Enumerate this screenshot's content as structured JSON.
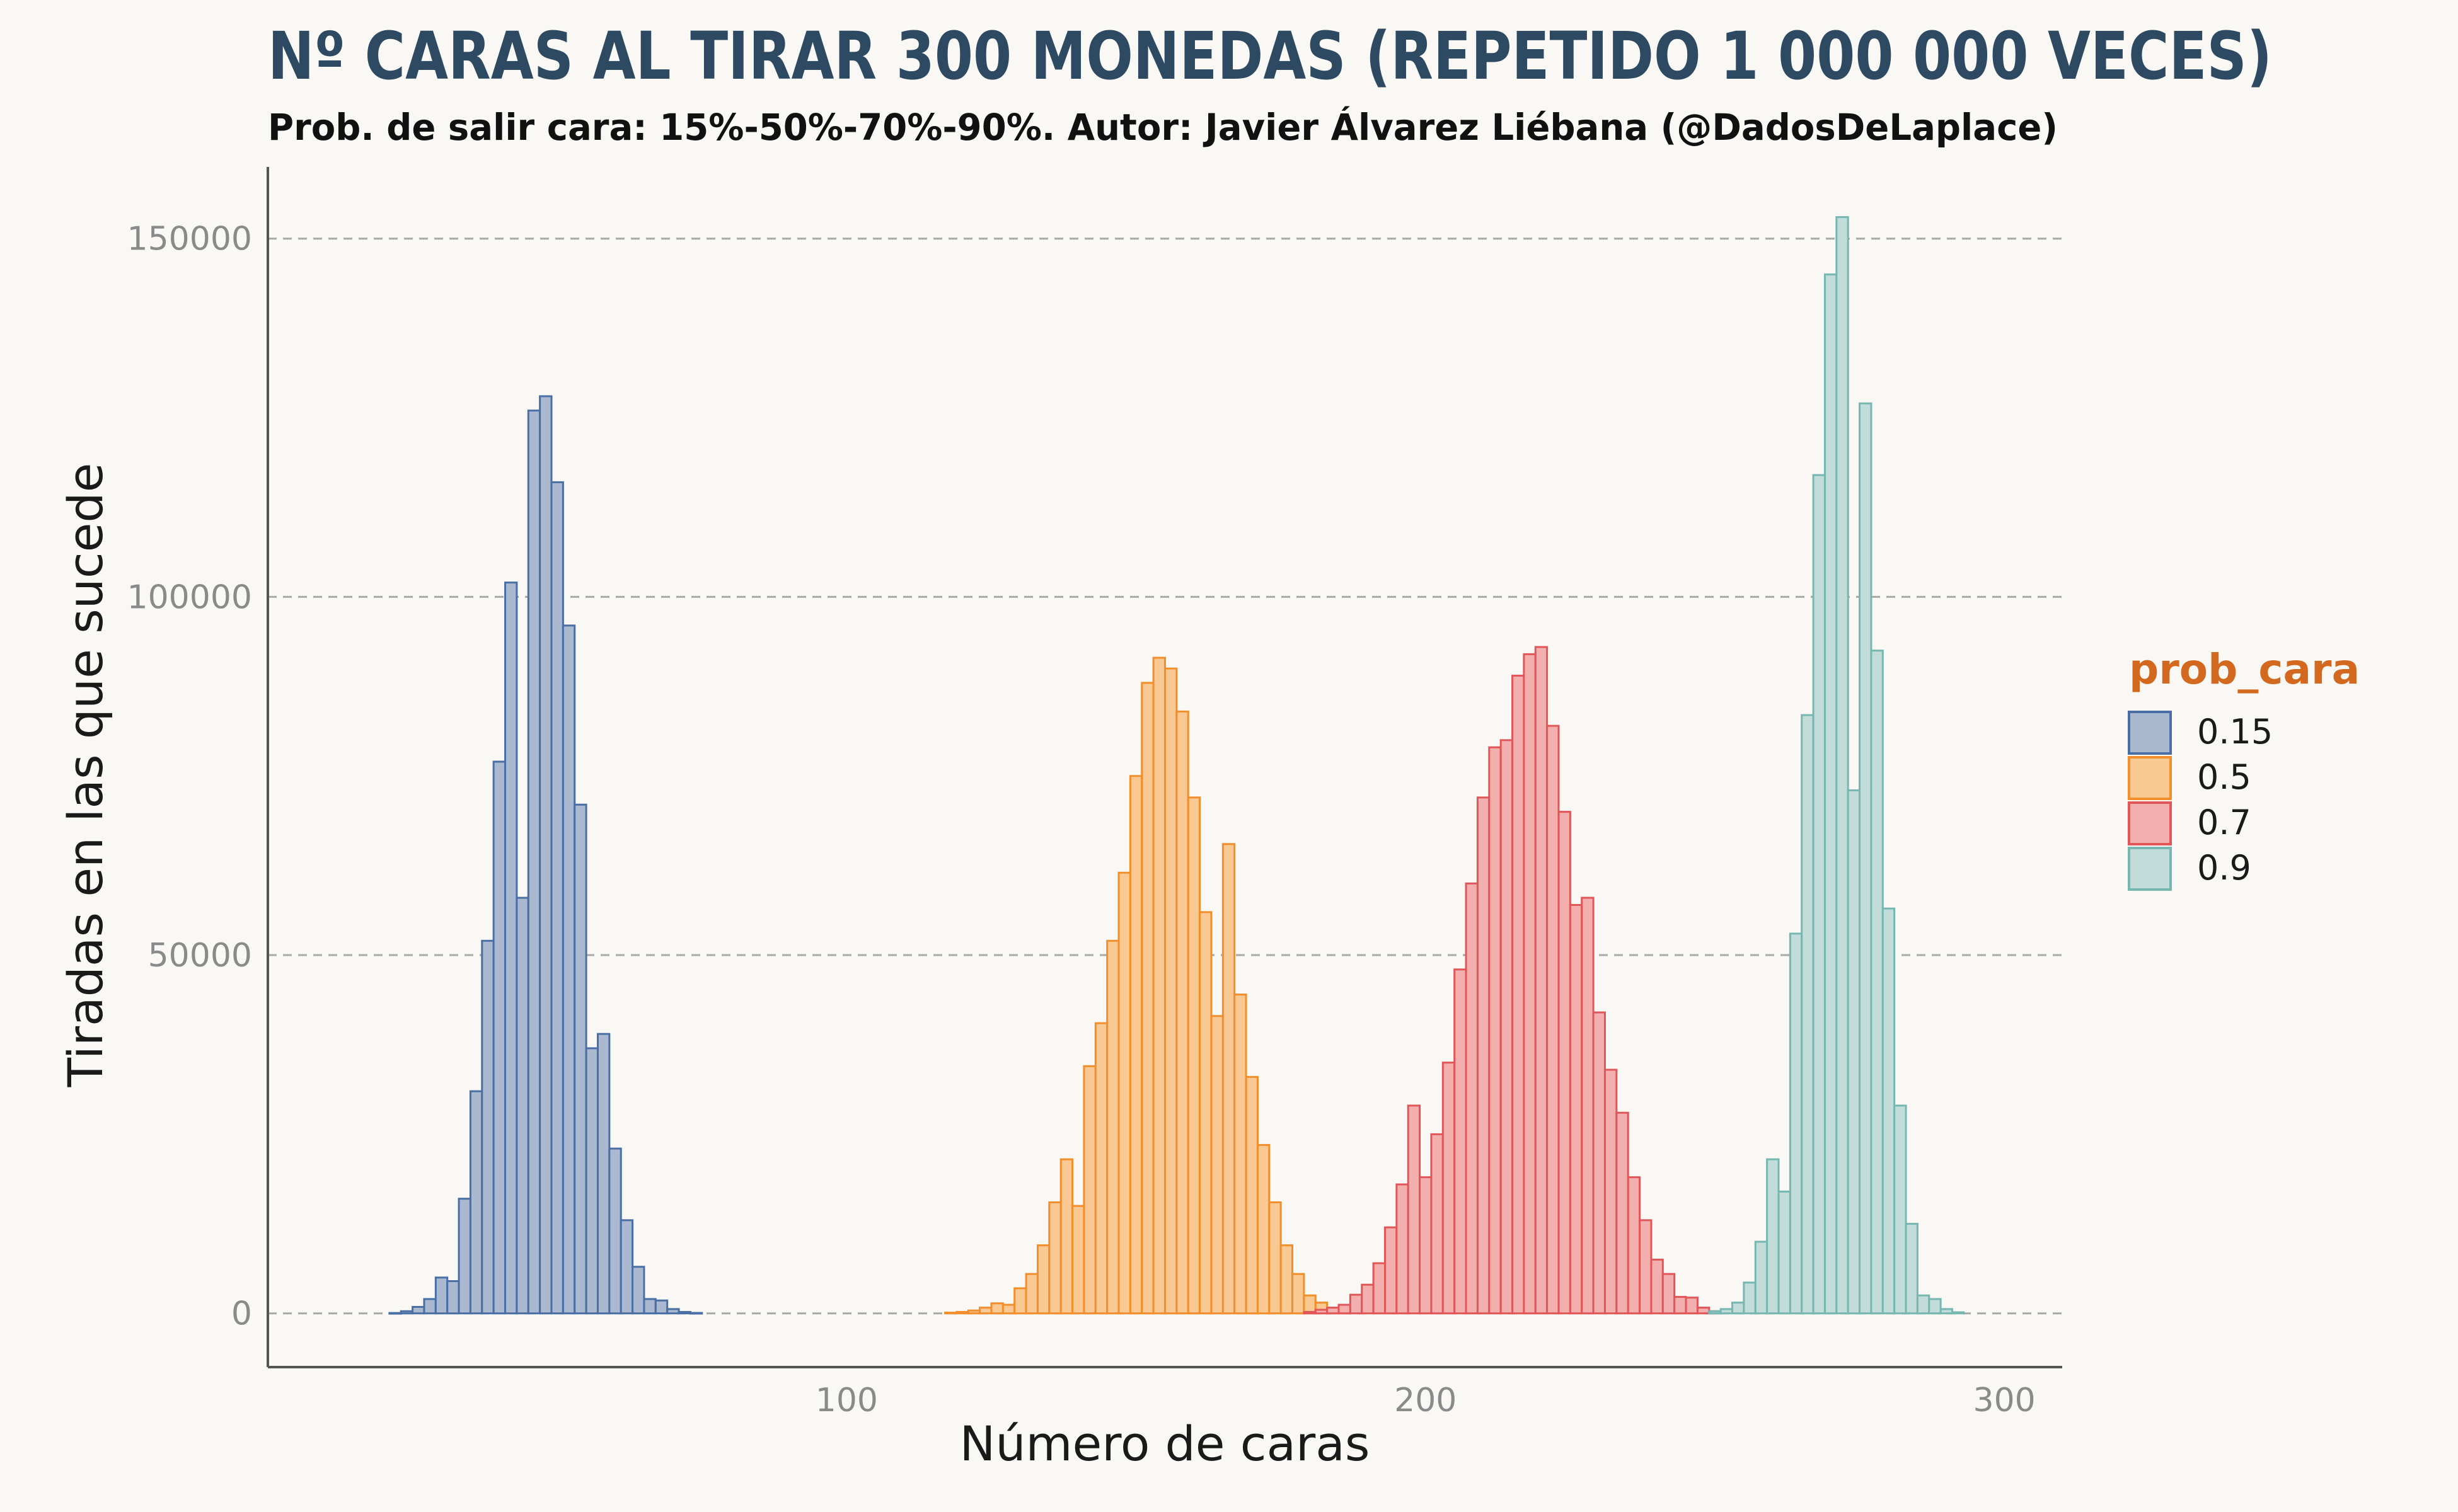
{
  "chart_data": {
    "type": "bar",
    "title": "Nº CARAS AL TIRAR 300 MONEDAS (REPETIDO 1 000 000 VECES)",
    "subtitle": "Prob. de salir cara: 15%-50%-70%-90%. Autor: Javier Álvarez Liébana (@DadosDeLaplace)",
    "xlabel": "Número de caras",
    "ylabel": "Tiradas en las que sucede",
    "xlim": [
      0,
      310
    ],
    "ylim": [
      -7500,
      160000
    ],
    "xticks": [
      100,
      200,
      300
    ],
    "xtick_labels": [
      "100",
      "200",
      "300"
    ],
    "yticks": [
      0,
      50000,
      100000,
      150000
    ],
    "ytick_labels": [
      "0",
      "50000",
      "100000",
      "150000"
    ],
    "grid": "horizontal dashed",
    "legend": {
      "title": "prob_cara",
      "position": "right",
      "entries": [
        "0.15",
        "0.5",
        "0.7",
        "0.9"
      ]
    },
    "bin_width": 2,
    "series": [
      {
        "name": "0.15",
        "color": "#4a6fa5",
        "fill": "#aab9cf",
        "bins": [
          [
            22,
            50
          ],
          [
            24,
            300
          ],
          [
            26,
            900
          ],
          [
            28,
            2000
          ],
          [
            30,
            5000
          ],
          [
            32,
            4500
          ],
          [
            34,
            16000
          ],
          [
            36,
            31000
          ],
          [
            38,
            52000
          ],
          [
            40,
            77000
          ],
          [
            42,
            102000
          ],
          [
            44,
            58000
          ],
          [
            46,
            126000
          ],
          [
            48,
            128000
          ],
          [
            50,
            116000
          ],
          [
            52,
            96000
          ],
          [
            54,
            71000
          ],
          [
            56,
            37000
          ],
          [
            58,
            39000
          ],
          [
            60,
            23000
          ],
          [
            62,
            13000
          ],
          [
            64,
            6500
          ],
          [
            66,
            2000
          ],
          [
            68,
            1800
          ],
          [
            70,
            600
          ],
          [
            72,
            200
          ],
          [
            74,
            60
          ]
        ]
      },
      {
        "name": "0.5",
        "color": "#f28e2b",
        "fill": "#f9c893",
        "bins": [
          [
            118,
            100
          ],
          [
            120,
            200
          ],
          [
            122,
            400
          ],
          [
            124,
            800
          ],
          [
            126,
            1400
          ],
          [
            128,
            1200
          ],
          [
            130,
            3500
          ],
          [
            132,
            5500
          ],
          [
            134,
            9500
          ],
          [
            136,
            15500
          ],
          [
            138,
            21500
          ],
          [
            140,
            15000
          ],
          [
            142,
            34500
          ],
          [
            144,
            40500
          ],
          [
            146,
            52000
          ],
          [
            148,
            61500
          ],
          [
            150,
            75000
          ],
          [
            152,
            88000
          ],
          [
            154,
            91500
          ],
          [
            156,
            90000
          ],
          [
            158,
            84000
          ],
          [
            160,
            72000
          ],
          [
            162,
            56000
          ],
          [
            164,
            41500
          ],
          [
            166,
            65500
          ],
          [
            168,
            44500
          ],
          [
            170,
            33000
          ],
          [
            172,
            23500
          ],
          [
            174,
            15500
          ],
          [
            176,
            9500
          ],
          [
            178,
            5500
          ],
          [
            180,
            2500
          ],
          [
            182,
            1500
          ],
          [
            184,
            600
          ],
          [
            186,
            300
          ]
        ]
      },
      {
        "name": "0.7",
        "color": "#e15759",
        "fill": "#f3aeae",
        "bins": [
          [
            180,
            200
          ],
          [
            182,
            500
          ],
          [
            184,
            800
          ],
          [
            186,
            1200
          ],
          [
            188,
            2600
          ],
          [
            190,
            4000
          ],
          [
            192,
            7000
          ],
          [
            194,
            12000
          ],
          [
            196,
            18000
          ],
          [
            198,
            29000
          ],
          [
            200,
            19000
          ],
          [
            202,
            25000
          ],
          [
            204,
            35000
          ],
          [
            206,
            48000
          ],
          [
            208,
            60000
          ],
          [
            210,
            72000
          ],
          [
            212,
            79000
          ],
          [
            214,
            80000
          ],
          [
            216,
            89000
          ],
          [
            218,
            92000
          ],
          [
            220,
            93000
          ],
          [
            222,
            82000
          ],
          [
            224,
            70000
          ],
          [
            226,
            57000
          ],
          [
            228,
            58000
          ],
          [
            230,
            42000
          ],
          [
            232,
            34000
          ],
          [
            234,
            28000
          ],
          [
            236,
            19000
          ],
          [
            238,
            13000
          ],
          [
            240,
            7500
          ],
          [
            242,
            5500
          ],
          [
            244,
            2300
          ],
          [
            246,
            2200
          ],
          [
            248,
            800
          ],
          [
            250,
            300
          ]
        ]
      },
      {
        "name": "0.9",
        "color": "#76b7b2",
        "fill": "#c2ddd9",
        "bins": [
          [
            250,
            300
          ],
          [
            252,
            600
          ],
          [
            254,
            1500
          ],
          [
            256,
            4300
          ],
          [
            258,
            10000
          ],
          [
            260,
            21500
          ],
          [
            262,
            17000
          ],
          [
            264,
            53000
          ],
          [
            266,
            83500
          ],
          [
            268,
            117000
          ],
          [
            270,
            145000
          ],
          [
            272,
            153000
          ],
          [
            274,
            73000
          ],
          [
            276,
            127000
          ],
          [
            278,
            92500
          ],
          [
            280,
            56500
          ],
          [
            282,
            29000
          ],
          [
            284,
            12500
          ],
          [
            286,
            2500
          ],
          [
            288,
            2000
          ],
          [
            290,
            600
          ],
          [
            292,
            150
          ]
        ]
      }
    ]
  }
}
